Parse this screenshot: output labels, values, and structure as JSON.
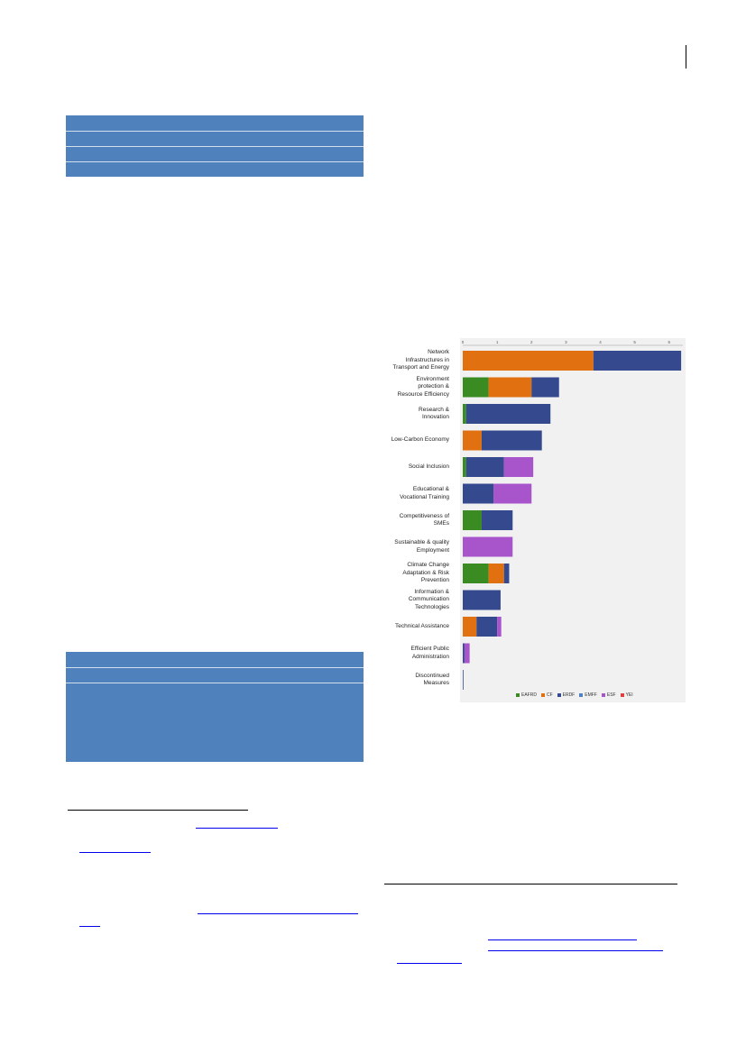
{
  "chart_data": {
    "type": "bar",
    "orientation": "horizontal",
    "stacked": true,
    "categories": [
      "Network Infrastructures in Transport and Energy",
      "Environment protection & Resource Efficiency",
      "Research & Innovation",
      "Low-Carbon Economy",
      "Social Inclusion",
      "Educational & Vocational Training",
      "Competitiveness of SMEs",
      "Sustainable & quality Employment",
      "Climate Change Adaptation & Risk Prevention",
      "Information & Communication Technologies",
      "Technical Assistance",
      "Efficient Public Administration",
      "Discontinued Measures"
    ],
    "category_lines": [
      [
        "Network",
        "Infrastructures in",
        "Transport and Energy"
      ],
      [
        "Environment",
        "protection &",
        "Resource Efficiency"
      ],
      [
        "Research &",
        "Innovation"
      ],
      [
        "Low-Carbon Economy"
      ],
      [
        "Social Inclusion"
      ],
      [
        "Educational &",
        "Vocational Training"
      ],
      [
        "Competitiveness of",
        "SMEs"
      ],
      [
        "Sustainable & quality",
        "Employment"
      ],
      [
        "Climate Change",
        "Adaptation & Risk",
        "Prevention"
      ],
      [
        "Information &",
        "Communication",
        "Technologies"
      ],
      [
        "Technical Assistance"
      ],
      [
        "Efficient Public",
        "Administration"
      ],
      [
        "Discontinued",
        "Measures"
      ]
    ],
    "series": [
      {
        "name": "EAFRD",
        "color": "#3a8b22",
        "values": [
          0,
          0.75,
          0.1,
          0,
          0.1,
          0,
          0.55,
          0,
          0.75,
          0,
          0,
          0,
          0
        ]
      },
      {
        "name": "CF",
        "color": "#e07010",
        "values": [
          3.8,
          1.25,
          0,
          0.55,
          0,
          0,
          0,
          0,
          0.45,
          0,
          0.4,
          0,
          0
        ]
      },
      {
        "name": "ERDF",
        "color": "#34498e",
        "values": [
          2.55,
          0.8,
          2.45,
          1.75,
          1.1,
          0.9,
          0.9,
          0,
          0.15,
          1.1,
          0.6,
          0.05,
          0.02
        ]
      },
      {
        "name": "EMFF",
        "color": "#4f80c0",
        "values": [
          0,
          0,
          0,
          0,
          0,
          0,
          0,
          0,
          0,
          0,
          0,
          0,
          0
        ]
      },
      {
        "name": "ESF",
        "color": "#a855cc",
        "values": [
          0,
          0,
          0,
          0,
          0.85,
          1.1,
          0,
          1.45,
          0,
          0,
          0.12,
          0.15,
          0
        ]
      },
      {
        "name": "YEI",
        "color": "#e04040",
        "values": [
          0,
          0,
          0,
          0,
          0,
          0,
          0,
          0,
          0,
          0,
          0,
          0,
          0
        ]
      }
    ],
    "xlim": [
      0,
      6.4
    ],
    "x_ticks": [
      "0",
      "1",
      "2",
      "3",
      "4",
      "5",
      "6"
    ],
    "legend_position": "bottom",
    "grid": false
  }
}
